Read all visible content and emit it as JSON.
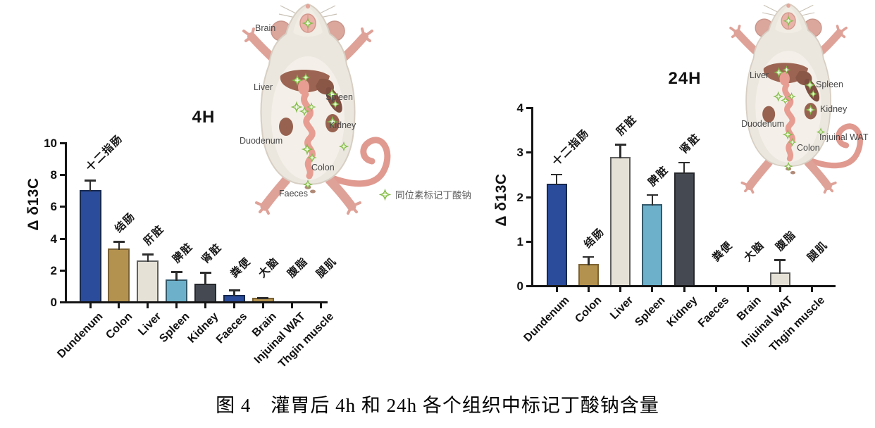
{
  "figure": {
    "caption": "图 4　灌胃后 4h 和 24h 各个组织中标记丁酸钠含量"
  },
  "legend": {
    "icon": "isotope-sparkle-icon",
    "label": "同位素标记丁酸钠",
    "icon_color": "#9ccf5f"
  },
  "palette": {
    "blue": {
      "fill": "#2a4c9b",
      "stroke": "#16284f"
    },
    "tan": {
      "fill": "#b3924f",
      "stroke": "#7c6334"
    },
    "cream": {
      "fill": "#e5e1d6",
      "stroke": "#606060"
    },
    "lightblue": {
      "fill": "#6cb0ca",
      "stroke": "#33596a"
    },
    "darkgray": {
      "fill": "#454a52",
      "stroke": "#26282c"
    }
  },
  "chart_data": [
    {
      "type": "bar",
      "title": "4H",
      "xlabel": "",
      "ylabel": "Δ δ13C",
      "ylim": [
        0,
        10
      ],
      "yticks": [
        0,
        2,
        4,
        6,
        8,
        10
      ],
      "grid": false,
      "legend_position": "none",
      "categories": [
        "Dundenum",
        "Colon",
        "Liver",
        "Spleen",
        "Kidney",
        "Faeces",
        "Brain",
        "Injuinal WAT",
        "Thgin muscle"
      ],
      "cn_labels": [
        "十二指肠",
        "结肠",
        "肝脏",
        "脾脏",
        "肾脏",
        "粪便",
        "大脑",
        "腹脂",
        "腿肌"
      ],
      "values": [
        7.0,
        3.3,
        2.55,
        1.35,
        1.1,
        0.4,
        0.2,
        0,
        0
      ],
      "errors": [
        0.65,
        0.5,
        0.45,
        0.55,
        0.75,
        0.35,
        0.06,
        0,
        0
      ],
      "bar_colors": [
        "blue",
        "tan",
        "cream",
        "lightblue",
        "darkgray",
        "blue",
        "tan",
        "none",
        "none"
      ]
    },
    {
      "type": "bar",
      "title": "24H",
      "xlabel": "",
      "ylabel": "Δ δ13C",
      "ylim": [
        0,
        4
      ],
      "yticks": [
        0,
        1,
        2,
        3,
        4
      ],
      "grid": false,
      "legend_position": "none",
      "categories": [
        "Dundenum",
        "Colon",
        "Liver",
        "Spleen",
        "Kidney",
        "Faeces",
        "Brain",
        "Injuinal WAT",
        "Thgin muscle"
      ],
      "cn_labels": [
        "十二指肠",
        "结肠",
        "肝脏",
        "脾脏",
        "肾脏",
        "粪便",
        "大脑",
        "腹脂",
        "腿肌"
      ],
      "values": [
        2.27,
        0.48,
        2.88,
        1.82,
        2.53,
        0,
        0,
        0.28,
        0
      ],
      "errors": [
        0.23,
        0.17,
        0.29,
        0.22,
        0.24,
        0,
        0,
        0.3,
        0
      ],
      "bar_colors": [
        "blue",
        "tan",
        "cream",
        "lightblue",
        "darkgray",
        "none",
        "none",
        "cream",
        "none"
      ]
    }
  ],
  "mice": [
    {
      "labels": [
        "Brain",
        "Liver",
        "Spleen",
        "Kidney",
        "Duodenum",
        "Colon",
        "Faeces"
      ]
    },
    {
      "labels": [
        "Liver",
        "Spleen",
        "Kidney",
        "Duodenum",
        "Colon",
        "Injuinal WAT"
      ]
    }
  ]
}
